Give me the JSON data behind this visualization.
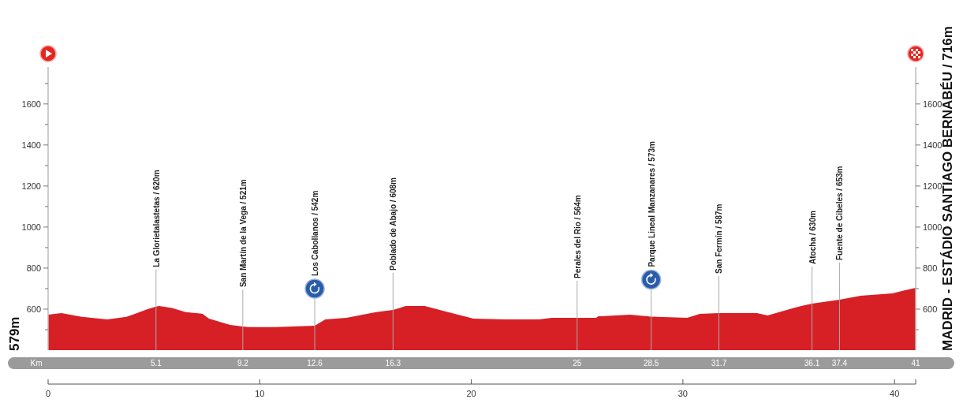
{
  "chart_data": {
    "type": "area",
    "x": [
      0,
      0.63,
      1.6,
      2.8,
      3.7,
      4.1,
      4.7,
      5.1,
      5.25,
      5.85,
      6.5,
      7.3,
      7.6,
      8.6,
      9.2,
      9.5,
      10.7,
      12.6,
      13.1,
      14.1,
      15.5,
      16.3,
      16.9,
      17.8,
      18.9,
      20.1,
      21.6,
      23.2,
      23.8,
      25,
      25.9,
      26,
      27.5,
      28.5,
      30.2,
      30.8,
      31.7,
      33.5,
      34,
      35.3,
      36.1,
      37.4,
      38.4,
      39.9,
      40.5,
      41
    ],
    "values": [
      573,
      581,
      562,
      550,
      562,
      577,
      600,
      612,
      615,
      606,
      585,
      577,
      554,
      523,
      515,
      512,
      512,
      519,
      550,
      558,
      585,
      596,
      615,
      615,
      585,
      554,
      550,
      550,
      558,
      558,
      558,
      565,
      573,
      563,
      558,
      577,
      581,
      581,
      569,
      608,
      627,
      646,
      665,
      677,
      692,
      704
    ],
    "color": "#d71f26",
    "xlim": [
      0,
      41
    ],
    "xticks": [
      0,
      10,
      20,
      30,
      40,
      {
        "value": 41,
        "label": null
      }
    ],
    "x2label": "Km",
    "x2lim": [
      0,
      41
    ],
    "x2ticks": [
      5.1,
      9.2,
      12.6,
      16.3,
      25,
      28.5,
      31.7,
      36.1,
      37.4,
      41
    ],
    "ylim": [
      400,
      1780
    ],
    "yticks": [
      {
        "value": 500,
        "label": null
      },
      600,
      {
        "value": 700,
        "label": null
      },
      800,
      {
        "value": 900,
        "label": null
      },
      1000,
      {
        "value": 1100,
        "label": null
      },
      1200,
      {
        "value": 1300,
        "label": null
      },
      1400,
      {
        "value": 1500,
        "label": null
      },
      1600,
      {
        "value": 1700,
        "label": null
      }
    ],
    "y2lim": [
      400,
      1780
    ],
    "y2ticks": [
      {
        "value": 500,
        "label": null
      },
      600,
      {
        "value": 700,
        "label": null
      },
      800,
      {
        "value": 900,
        "label": null
      },
      1000,
      {
        "value": 1100,
        "label": null
      },
      1200,
      {
        "value": 1300,
        "label": null
      },
      1400,
      {
        "value": 1500,
        "label": null
      },
      1600,
      {
        "value": 1700,
        "label": null
      }
    ],
    "grid": false,
    "ref_lines": [
      {
        "axis": "x",
        "value": 5.1,
        "label": "La Glorietalastetas / 620m"
      },
      {
        "axis": "x",
        "value": 9.2,
        "label": "San Martín de la Vega / 521m"
      },
      {
        "axis": "x",
        "value": 12.6,
        "label": "Los Cabollanos / 542m"
      },
      {
        "axis": "x",
        "value": 16.3,
        "label": "Poblado de Abajo / 608m"
      },
      {
        "axis": "x",
        "value": 25,
        "label": "Perales del Rio / 564m"
      },
      {
        "axis": "x",
        "value": 28.5,
        "label": "Parque Lineal Manzanares / 573m"
      },
      {
        "axis": "x",
        "value": 31.7,
        "label": "San Fermín / 587m"
      },
      {
        "axis": "x",
        "value": 36.1,
        "label": "Atocha / 630m"
      },
      {
        "axis": "x",
        "value": 37.4,
        "label": "Fuente de Cibeles / 653m"
      }
    ],
    "annotations": [
      "579m",
      "MADRID - ESTÁDIO SANTIAGO BERNABÉU / 716m"
    ]
  }
}
